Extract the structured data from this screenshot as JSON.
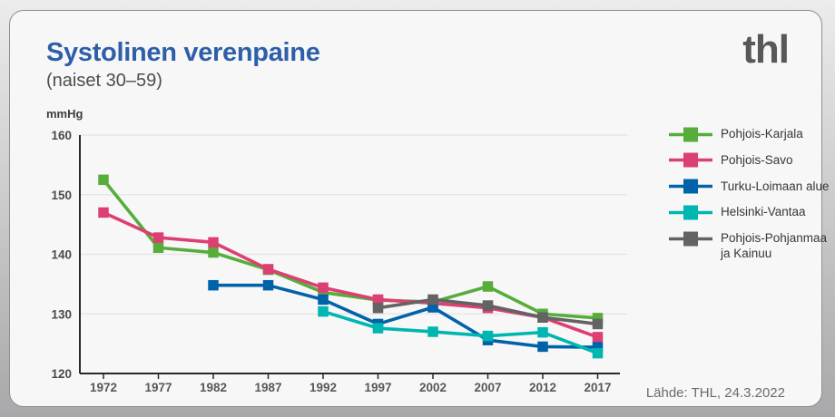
{
  "header": {
    "title": "Systolinen verenpaine",
    "subtitle": "(naiset 30–59)",
    "logo_text": "thl",
    "title_color": "#2e5fa9"
  },
  "footer": {
    "source": "Lähde: THL, 24.3.2022"
  },
  "chart_data": {
    "type": "line",
    "title": "Systolinen verenpaine (naiset 30–59)",
    "unit_label": "mmHg",
    "ylabel": "mmHg",
    "x": [
      1972,
      1977,
      1982,
      1987,
      1992,
      1997,
      2002,
      2007,
      2012,
      2017
    ],
    "ylim": [
      120,
      160
    ],
    "yticks": [
      120,
      130,
      140,
      150,
      160
    ],
    "grid": true,
    "legend_position": "right",
    "marker": "square",
    "series": [
      {
        "name": "Pohjois-Karjala",
        "color": "#56ad3a",
        "values": [
          152.5,
          141.1,
          140.3,
          137.4,
          133.6,
          132.3,
          132.0,
          134.6,
          130.0,
          129.3
        ]
      },
      {
        "name": "Pohjois-Savo",
        "color": "#dd3f72",
        "values": [
          147.0,
          142.8,
          142.0,
          137.5,
          134.4,
          132.4,
          131.8,
          131.0,
          129.4,
          126.1
        ]
      },
      {
        "name": "Turku-Loimaan alue",
        "color": "#0063a9",
        "values": [
          null,
          null,
          134.8,
          134.8,
          132.4,
          128.3,
          131.1,
          125.6,
          124.5,
          124.4
        ]
      },
      {
        "name": "Helsinki-Vantaa",
        "color": "#00b6b0",
        "values": [
          null,
          null,
          null,
          null,
          130.4,
          127.6,
          127.0,
          126.3,
          126.9,
          123.4
        ]
      },
      {
        "name": "Pohjois-Pohjanmaa ja Kainuu",
        "color": "#636363",
        "values": [
          null,
          null,
          null,
          null,
          null,
          131.0,
          132.4,
          131.4,
          129.4,
          128.3
        ]
      }
    ],
    "axis_color": "#29292b",
    "gridline_color": "#e3e3e5",
    "tick_label_color": "#4a4a4d"
  }
}
